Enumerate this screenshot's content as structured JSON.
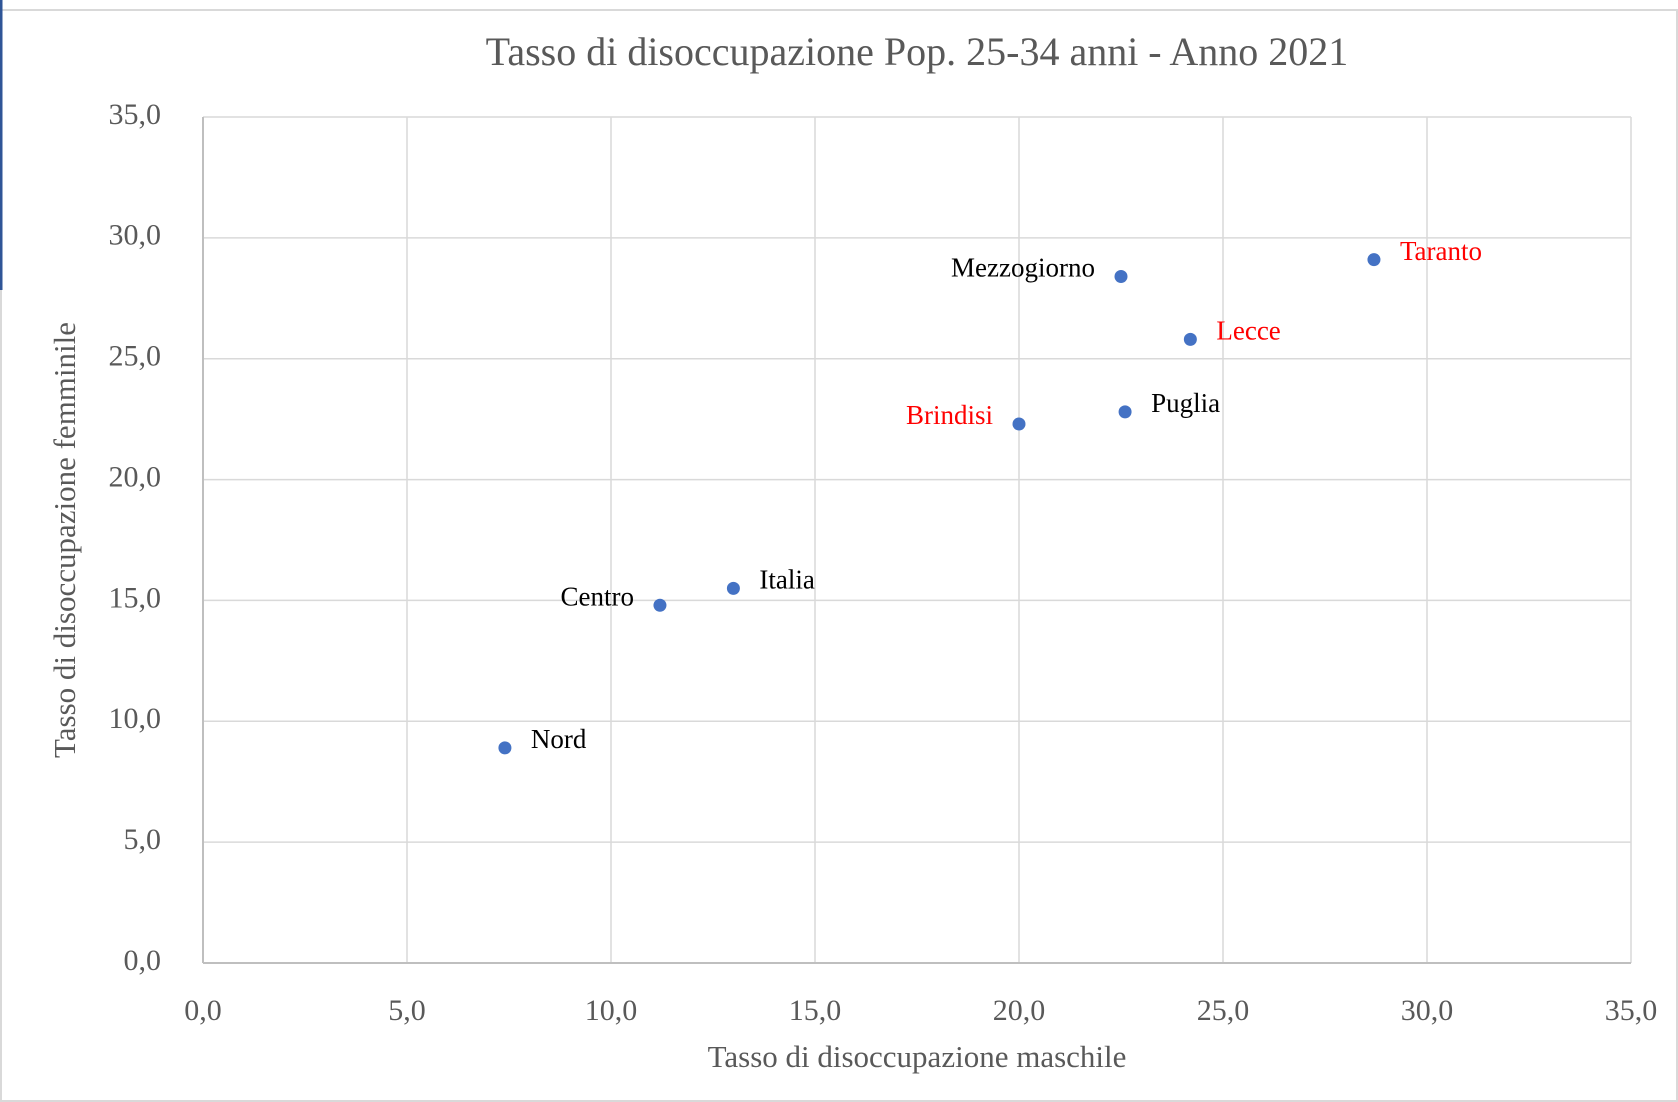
{
  "chart_data": {
    "type": "scatter",
    "title": "Tasso di disoccupazione Pop. 25-34 anni - Anno 2021",
    "x_label": "Tasso di disoccupazione maschile",
    "y_label": "Tasso di disoccupazione femminile",
    "color": "#4472c4",
    "grid": true,
    "xlim": [
      0,
      35
    ],
    "ylim": [
      0,
      35
    ],
    "xticks": [
      {
        "value": 0,
        "label": "0,0"
      },
      {
        "value": 5,
        "label": "5,0"
      },
      {
        "value": 10,
        "label": "10,0"
      },
      {
        "value": 15,
        "label": "15,0"
      },
      {
        "value": 20,
        "label": "20,0"
      },
      {
        "value": 25,
        "label": "25,0"
      },
      {
        "value": 30,
        "label": "30,0"
      },
      {
        "value": 35,
        "label": "35,0"
      }
    ],
    "yticks": [
      {
        "value": 0,
        "label": "0,0"
      },
      {
        "value": 5,
        "label": "5,0"
      },
      {
        "value": 10,
        "label": "10,0"
      },
      {
        "value": 15,
        "label": "15,0"
      },
      {
        "value": 20,
        "label": "20,0"
      },
      {
        "value": 25,
        "label": "25,0"
      },
      {
        "value": 30,
        "label": "30,0"
      },
      {
        "value": 35,
        "label": "35,0"
      }
    ],
    "points": [
      {
        "label": "Nord",
        "x": 7.4,
        "y": 8.9,
        "label_color": "#000000",
        "label_side": "right"
      },
      {
        "label": "Centro",
        "x": 11.2,
        "y": 14.8,
        "label_color": "#000000",
        "label_side": "left"
      },
      {
        "label": "Italia",
        "x": 13.0,
        "y": 15.5,
        "label_color": "#000000",
        "label_side": "right"
      },
      {
        "label": "Brindisi",
        "x": 20.0,
        "y": 22.3,
        "label_color": "#ff0000",
        "label_side": "left"
      },
      {
        "label": "Puglia",
        "x": 22.6,
        "y": 22.8,
        "label_color": "#000000",
        "label_side": "right"
      },
      {
        "label": "Mezzogiorno",
        "x": 22.5,
        "y": 28.4,
        "label_color": "#000000",
        "label_side": "left"
      },
      {
        "label": "Lecce",
        "x": 24.2,
        "y": 25.8,
        "label_color": "#ff0000",
        "label_side": "right"
      },
      {
        "label": "Taranto",
        "x": 28.7,
        "y": 29.1,
        "label_color": "#ff0000",
        "label_side": "right"
      }
    ]
  }
}
